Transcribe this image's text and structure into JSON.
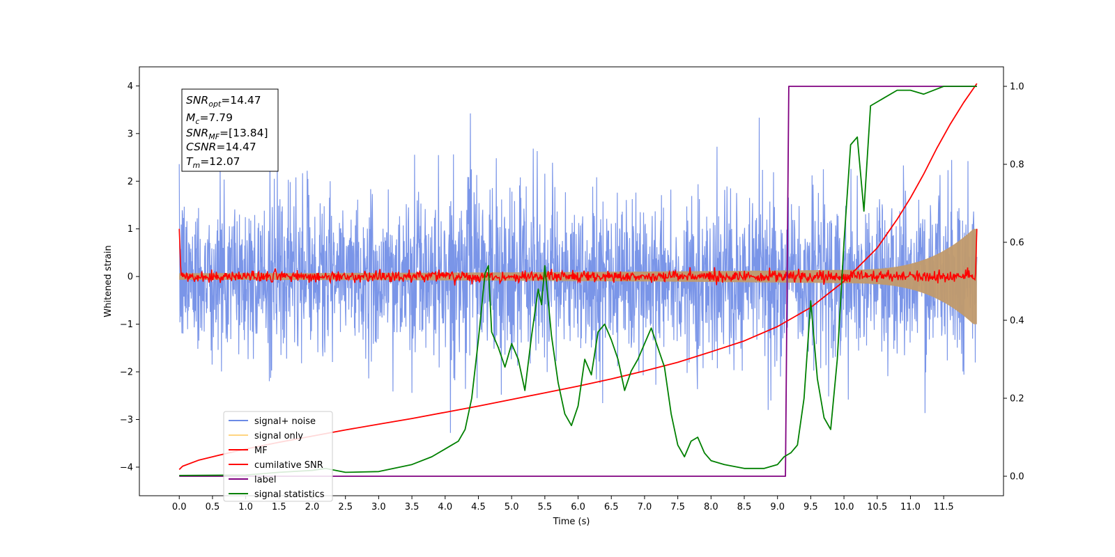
{
  "chart_data": {
    "type": "line",
    "xlabel": "Time (s)",
    "ylabel": "Whitened strain",
    "xlim": [
      -0.6,
      12.4
    ],
    "ylim": [
      -4.6,
      4.4
    ],
    "ylim_right": [
      -0.05,
      1.05
    ],
    "x_ticks": [
      "0.0",
      "0.5",
      "1.0",
      "1.5",
      "2.0",
      "2.5",
      "3.0",
      "3.5",
      "4.0",
      "4.5",
      "5.0",
      "5.5",
      "6.0",
      "6.5",
      "7.0",
      "7.5",
      "8.0",
      "8.5",
      "9.0",
      "9.5",
      "10.0",
      "10.5",
      "11.0",
      "11.5"
    ],
    "y_ticks": [
      "−4",
      "−3",
      "−2",
      "−1",
      "0",
      "1",
      "2",
      "3",
      "4"
    ],
    "y_ticks_right": [
      "0.0",
      "0.2",
      "0.4",
      "0.6",
      "0.8",
      "1.0"
    ],
    "legend_position": "lower-left",
    "legend": [
      "signal+ noise",
      "signal only",
      "MF",
      "cumilative SNR",
      "label",
      "signal statistics"
    ],
    "info_box": {
      "snr_opt": {
        "main": "SNR",
        "sub": "opt",
        "value": "=14.47"
      },
      "mc": {
        "main": "M",
        "sub": "c",
        "value": "=7.79"
      },
      "snr_mf": {
        "main": "SNR",
        "sub": "MF",
        "value": "=[13.84]"
      },
      "csnr": {
        "main": "CSNR",
        "sub": "",
        "value": "=14.47"
      },
      "tm": {
        "main": "T",
        "sub": "m",
        "value": "=12.07"
      }
    },
    "colors": {
      "noise": "#6b8ae6",
      "signal": "#c19a6b",
      "mf": "#ff0000",
      "csnr": "#ff0000",
      "label": "#800080",
      "stats": "#008000"
    },
    "series": [
      {
        "name": "label",
        "axis": "right",
        "x": [
          0.0,
          9.12,
          9.17,
          12.0
        ],
        "values": [
          0.0,
          0.0,
          1.0,
          1.0
        ]
      },
      {
        "name": "cumilative SNR",
        "axis": "left",
        "x": [
          0.0,
          0.05,
          0.3,
          0.6,
          1.0,
          1.5,
          2.0,
          2.5,
          3.0,
          3.5,
          4.0,
          4.5,
          5.0,
          5.5,
          6.0,
          6.5,
          7.0,
          7.5,
          8.0,
          8.5,
          9.0,
          9.5,
          10.0,
          10.5,
          10.8,
          11.0,
          11.2,
          11.4,
          11.6,
          11.8,
          11.9,
          12.0
        ],
        "values": [
          -4.05,
          -3.98,
          -3.85,
          -3.75,
          -3.62,
          -3.48,
          -3.35,
          -3.22,
          -3.1,
          -2.98,
          -2.85,
          -2.72,
          -2.58,
          -2.44,
          -2.3,
          -2.15,
          -1.98,
          -1.8,
          -1.58,
          -1.35,
          -1.05,
          -0.65,
          -0.1,
          0.6,
          1.2,
          1.65,
          2.15,
          2.7,
          3.2,
          3.65,
          3.85,
          4.05
        ]
      },
      {
        "name": "signal statistics",
        "axis": "right",
        "x": [
          0.0,
          1.0,
          1.5,
          2.0,
          2.2,
          2.5,
          3.0,
          3.5,
          3.8,
          4.0,
          4.1,
          4.2,
          4.3,
          4.4,
          4.5,
          4.6,
          4.65,
          4.7,
          4.8,
          4.9,
          5.0,
          5.1,
          5.2,
          5.3,
          5.4,
          5.45,
          5.5,
          5.6,
          5.7,
          5.8,
          5.9,
          6.0,
          6.1,
          6.2,
          6.3,
          6.4,
          6.5,
          6.6,
          6.7,
          6.8,
          6.9,
          7.0,
          7.1,
          7.2,
          7.3,
          7.4,
          7.5,
          7.6,
          7.7,
          7.8,
          7.9,
          8.0,
          8.2,
          8.5,
          8.8,
          9.0,
          9.1,
          9.2,
          9.3,
          9.4,
          9.5,
          9.6,
          9.7,
          9.8,
          9.9,
          10.0,
          10.1,
          10.2,
          10.3,
          10.4,
          10.5,
          10.6,
          10.8,
          11.0,
          11.2,
          11.5,
          11.8,
          12.0
        ],
        "values": [
          0.002,
          0.003,
          0.01,
          0.015,
          0.02,
          0.01,
          0.012,
          0.03,
          0.05,
          0.07,
          0.08,
          0.09,
          0.12,
          0.2,
          0.35,
          0.52,
          0.54,
          0.37,
          0.33,
          0.28,
          0.34,
          0.3,
          0.22,
          0.36,
          0.48,
          0.44,
          0.54,
          0.36,
          0.24,
          0.16,
          0.13,
          0.18,
          0.3,
          0.26,
          0.37,
          0.39,
          0.35,
          0.3,
          0.22,
          0.27,
          0.3,
          0.34,
          0.38,
          0.33,
          0.28,
          0.16,
          0.08,
          0.05,
          0.09,
          0.1,
          0.06,
          0.04,
          0.03,
          0.02,
          0.02,
          0.03,
          0.05,
          0.06,
          0.08,
          0.2,
          0.45,
          0.25,
          0.15,
          0.12,
          0.3,
          0.6,
          0.85,
          0.87,
          0.68,
          0.95,
          0.96,
          0.97,
          0.99,
          0.99,
          0.98,
          1.0,
          1.0,
          1.0
        ]
      }
    ]
  }
}
